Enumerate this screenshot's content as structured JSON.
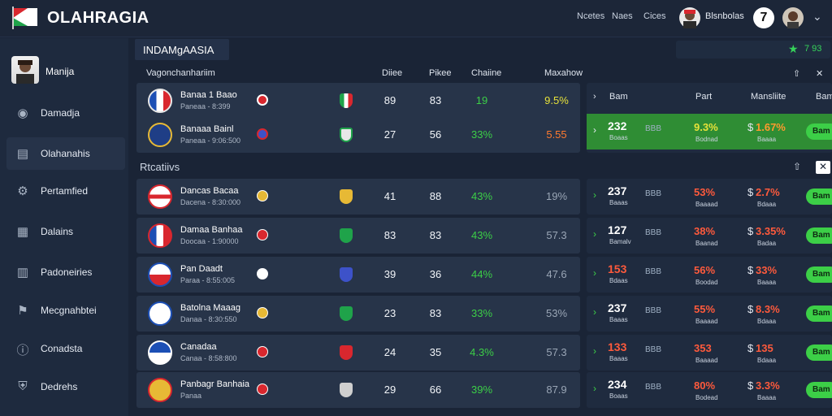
{
  "app": {
    "title": "OLAHRAGIA",
    "nav_links": [
      "Ncetes",
      "Naes",
      "Cices"
    ],
    "user_name": "Blsnbolas",
    "badge_number": "7"
  },
  "sidebar": {
    "profile_name": "Manija",
    "items": [
      {
        "label": "Damadja",
        "icon": "helmet-icon"
      },
      {
        "label": "Olahanahis",
        "icon": "folder-icon"
      },
      {
        "label": "Pertamfied",
        "icon": "gear-icon"
      },
      {
        "label": "Dalains",
        "icon": "building-icon"
      },
      {
        "label": "Padoneiries",
        "icon": "chart-icon"
      },
      {
        "label": "Mecgnahbtei",
        "icon": "flag-icon"
      },
      {
        "label": "Conadsta",
        "icon": "info-icon"
      },
      {
        "label": "Dedrehs",
        "icon": "shield-icon"
      }
    ]
  },
  "main": {
    "title": "INDAMgAASIA",
    "topright_value": "7 93",
    "columns": {
      "team": "Vagonchanhariim",
      "c1": "Diiee",
      "c2": "Pikee",
      "c3": "Chaiine",
      "c4": "Maxahow"
    },
    "right_columns": [
      "Bam",
      "Part",
      "Mansliite",
      "Bam"
    ],
    "section_title": "Rtcatiivs",
    "top_rows": [
      {
        "name": "Banaa 1 Baao",
        "sub": "Paneaa  -  8:399",
        "n1": "89",
        "n2": "83",
        "p1": "19",
        "p2": "9.5%",
        "p1_color": "#3ccf47",
        "p2_color": "#e7e23a"
      },
      {
        "name": "Banaaa Bainl",
        "sub": "Paneaa  -  9:06:500",
        "n1": "27",
        "n2": "56",
        "p1": "33%",
        "p2": "5.55",
        "p1_color": "#3ccf47",
        "p2_color": "#ff7a2e"
      }
    ],
    "rows": [
      {
        "name": "Dancas Bacaa",
        "sub": "Dacena  -  8:30:000",
        "n1": "41",
        "n2": "88",
        "p1": "43%",
        "p2": "19%",
        "p2_color": "#9aa6b6"
      },
      {
        "name": "Damaa Banhaa",
        "sub": "Doocaa  -  1:90000",
        "n1": "83",
        "n2": "83",
        "p1": "43%",
        "p2": "57.3",
        "p2_color": "#9aa6b6"
      },
      {
        "name": "Pan Daadt",
        "sub": "Paraa  -  8:55:005",
        "n1": "39",
        "n2": "36",
        "p1": "44%",
        "p2": "47.6",
        "p2_color": "#9aa6b6"
      },
      {
        "name": "Batolna Maaag",
        "sub": "Danaa  -  8:30:550",
        "n1": "23",
        "n2": "83",
        "p1": "33%",
        "p2": "53%",
        "p2_color": "#9aa6b6"
      },
      {
        "name": "Canadaa",
        "sub": "Canaa  -  8:58:800",
        "n1": "24",
        "n2": "35",
        "p1": "4.3%",
        "p2": "57.3",
        "p2_color": "#9aa6b6"
      },
      {
        "name": "Panbagr Banhaia",
        "sub": "Panaa",
        "n1": "29",
        "n2": "66",
        "p1": "39%",
        "p2": "87.9",
        "p2_color": "#9aa6b6"
      }
    ],
    "right_top": [
      {
        "big": "232",
        "sub": "Boaas",
        "small": "BBB",
        "pct": "9.3%",
        "pct_sub": "Bodnad",
        "val": "1.67%",
        "val_sub": "Baaaa",
        "btn": "Bam",
        "big_color": "#ffffff",
        "pct_color": "#e7e23a",
        "val_color": "#ff9a2e"
      }
    ],
    "right_rows": [
      {
        "big": "237",
        "sub": "Baaas",
        "small": "BBB",
        "pct": "53%",
        "pct_sub": "Baaaad",
        "val": "2.7%",
        "val_sub": "Bdaaa",
        "btn": "Bam",
        "big_color": "#ffffff"
      },
      {
        "big": "127",
        "sub": "Bamalv",
        "small": "BBB",
        "pct": "38%",
        "pct_sub": "Baanad",
        "val": "3.35%",
        "val_sub": "Badaa",
        "btn": "Bam",
        "big_color": "#ffffff"
      },
      {
        "big": "153",
        "sub": "Bdaas",
        "small": "BBB",
        "pct": "56%",
        "pct_sub": "Boodad",
        "val": "33%",
        "val_sub": "Baaaa",
        "btn": "Bam",
        "big_color": "#ff5a3c"
      },
      {
        "big": "237",
        "sub": "Baaas",
        "small": "BBB",
        "pct": "55%",
        "pct_sub": "Baaaad",
        "val": "8.3%",
        "val_sub": "Bdaaa",
        "btn": "Bam",
        "big_color": "#ffffff"
      },
      {
        "big": "133",
        "sub": "Baaas",
        "small": "BBB",
        "pct": "353",
        "pct_sub": "Baaaad",
        "val": "135",
        "val_sub": "Bdaaa",
        "btn": "Bam",
        "big_color": "#ff5a3c"
      },
      {
        "big": "234",
        "sub": "Boaas",
        "small": "BBB",
        "pct": "80%",
        "pct_sub": "Bodead",
        "val": "3.3%",
        "val_sub": "Baaaa",
        "btn": "Bam",
        "big_color": "#ffffff"
      }
    ]
  },
  "colors": {
    "green": "#3ccf47",
    "red": "#ff5a3c",
    "highlight": "#2f8d34"
  }
}
